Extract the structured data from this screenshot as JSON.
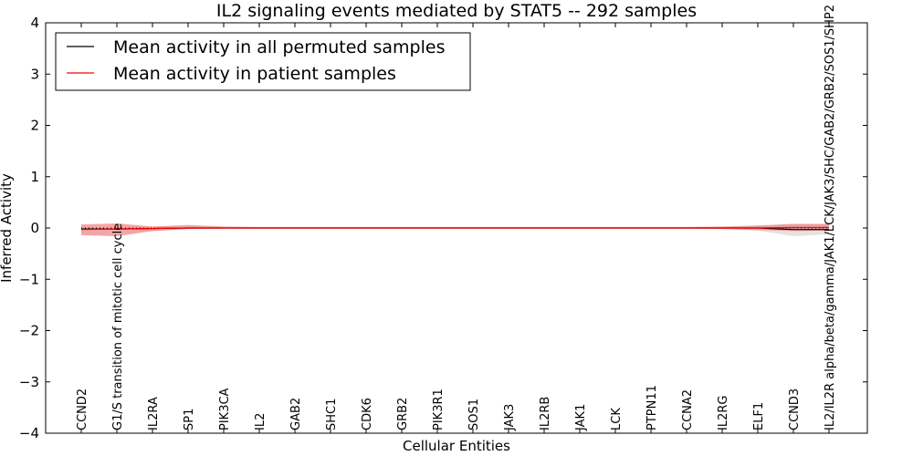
{
  "chart_data": {
    "type": "line",
    "title": "IL2 signaling events mediated by STAT5 -- 292 samples",
    "xlabel": "Cellular Entities",
    "ylabel": "Inferred Activity",
    "ylim": [
      -4,
      4
    ],
    "yticks": [
      "−4",
      "−3",
      "−2",
      "−1",
      "0",
      "1",
      "2",
      "3",
      "4"
    ],
    "ytick_values": [
      -4,
      -3,
      -2,
      -1,
      0,
      1,
      2,
      3,
      4
    ],
    "categories": [
      "CCND2",
      "G1/S transition of mitotic cell cycle",
      "IL2RA",
      "SP1",
      "PIK3CA",
      "IL2",
      "GAB2",
      "SHC1",
      "CDK6",
      "GRB2",
      "PIK3R1",
      "SOS1",
      "JAK3",
      "IL2RB",
      "JAK1",
      "LCK",
      "PTPN11",
      "CCNA2",
      "IL2RG",
      "ELF1",
      "CCND3",
      "IL2/IL2R alpha/beta/gamma/JAK1/LCK/JAK3/SHC/GAB2/GRB2/SOS1/SHP2"
    ],
    "legend": {
      "placement": "top-left",
      "entries": [
        "Mean activity in all permuted samples",
        "Mean activity in patient samples"
      ]
    },
    "series": [
      {
        "name": "Mean activity in all permuted samples",
        "color": "#000000",
        "values": [
          -0.02,
          -0.02,
          -0.01,
          0.0,
          0.0,
          0.0,
          0.0,
          0.0,
          0.0,
          0.0,
          0.0,
          0.0,
          0.0,
          0.0,
          0.0,
          0.0,
          0.0,
          0.0,
          0.0,
          0.0,
          -0.03,
          -0.03
        ],
        "band_low": [
          -0.02,
          -0.02,
          -0.06,
          -0.02,
          -0.01,
          -0.01,
          -0.01,
          -0.01,
          -0.01,
          -0.01,
          -0.01,
          -0.01,
          -0.01,
          -0.01,
          -0.01,
          -0.01,
          -0.01,
          -0.01,
          -0.02,
          -0.05,
          -0.16,
          -0.12
        ],
        "band_high": [
          -0.02,
          -0.02,
          0.03,
          0.01,
          0.01,
          0.01,
          0.01,
          0.01,
          0.01,
          0.01,
          0.01,
          0.01,
          0.01,
          0.01,
          0.01,
          0.01,
          0.01,
          0.01,
          0.02,
          0.04,
          0.08,
          0.08
        ]
      },
      {
        "name": "Mean activity in patient samples",
        "color": "#ff0000",
        "values": [
          -0.03,
          -0.02,
          -0.01,
          0.0,
          0.0,
          0.0,
          0.0,
          0.0,
          0.0,
          0.0,
          0.0,
          0.0,
          0.0,
          0.0,
          0.0,
          0.0,
          0.0,
          0.0,
          0.0,
          0.0,
          0.01,
          0.01
        ],
        "band_low": [
          -0.14,
          -0.16,
          -0.06,
          -0.02,
          -0.01,
          -0.01,
          -0.01,
          -0.01,
          -0.01,
          -0.01,
          -0.01,
          -0.01,
          -0.01,
          -0.01,
          -0.01,
          -0.01,
          -0.01,
          -0.01,
          -0.02,
          -0.04,
          -0.06,
          -0.05
        ],
        "band_high": [
          0.07,
          0.09,
          0.03,
          0.06,
          0.03,
          0.02,
          0.02,
          0.02,
          0.02,
          0.02,
          0.02,
          0.02,
          0.02,
          0.02,
          0.02,
          0.02,
          0.02,
          0.02,
          0.03,
          0.05,
          0.08,
          0.08
        ]
      }
    ],
    "colors": {
      "patient_band": "#f08080",
      "permuted_band": "#c8c8c8"
    }
  }
}
